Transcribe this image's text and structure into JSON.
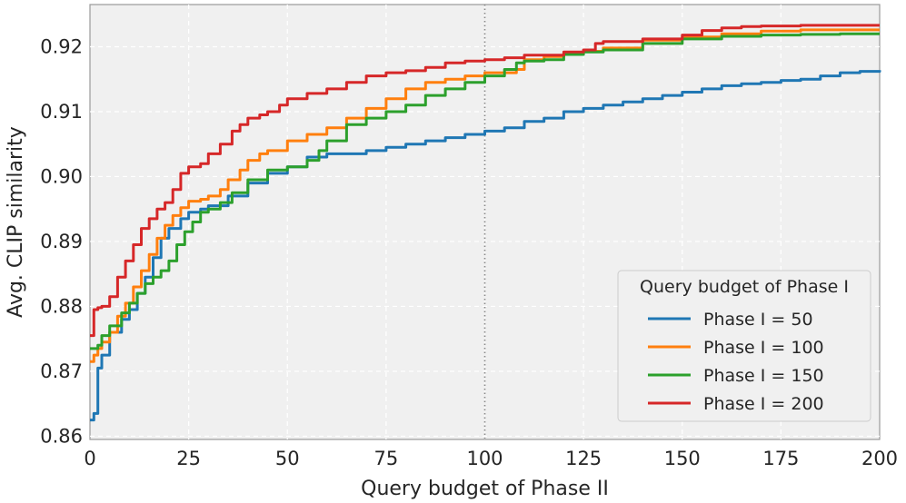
{
  "chart_data": {
    "type": "line",
    "title": "",
    "xlabel": "Query budget of Phase II",
    "ylabel": "Avg. CLIP similarity",
    "xlim": [
      0,
      200
    ],
    "ylim": [
      0.8595,
      0.9265
    ],
    "xticks": [
      0,
      25,
      50,
      75,
      100,
      125,
      150,
      175,
      200
    ],
    "xtick_labels": [
      "0",
      "25",
      "50",
      "75",
      "100",
      "125",
      "150",
      "175",
      "200"
    ],
    "yticks": [
      0.86,
      0.87,
      0.88,
      0.89,
      0.9,
      0.91,
      0.92
    ],
    "ytick_labels": [
      "0.86",
      "0.87",
      "0.88",
      "0.89",
      "0.90",
      "0.91",
      "0.92"
    ],
    "grid": true,
    "vline": {
      "x": 100,
      "style": "dotted"
    },
    "legend": {
      "title": "Query budget of Phase I",
      "position": "lower-right"
    },
    "series": [
      {
        "name": "Phase I = 50",
        "color": "#1f77b4",
        "x": [
          0,
          1,
          2,
          3,
          5,
          8,
          10,
          12,
          14,
          16,
          18,
          20,
          23,
          25,
          28,
          30,
          35,
          40,
          45,
          50,
          55,
          60,
          65,
          70,
          75,
          80,
          85,
          90,
          95,
          100,
          105,
          110,
          115,
          120,
          125,
          130,
          135,
          140,
          145,
          150,
          155,
          160,
          165,
          170,
          175,
          180,
          185,
          190,
          195,
          200
        ],
        "y": [
          0.8625,
          0.8635,
          0.8705,
          0.8725,
          0.876,
          0.878,
          0.8795,
          0.882,
          0.8845,
          0.8875,
          0.8905,
          0.892,
          0.8935,
          0.8945,
          0.895,
          0.8955,
          0.897,
          0.899,
          0.9005,
          0.9015,
          0.903,
          0.9035,
          0.9035,
          0.904,
          0.9045,
          0.905,
          0.9055,
          0.906,
          0.9065,
          0.907,
          0.9075,
          0.9085,
          0.909,
          0.91,
          0.9105,
          0.911,
          0.9115,
          0.912,
          0.9125,
          0.913,
          0.9135,
          0.914,
          0.9143,
          0.9145,
          0.9148,
          0.915,
          0.9155,
          0.916,
          0.9162,
          0.9164
        ]
      },
      {
        "name": "Phase I = 100",
        "color": "#ff7f0e",
        "x": [
          0,
          1,
          2,
          3,
          5,
          7,
          9,
          11,
          13,
          15,
          17,
          19,
          21,
          23,
          25,
          28,
          30,
          33,
          35,
          38,
          40,
          43,
          45,
          50,
          55,
          60,
          65,
          70,
          75,
          80,
          85,
          90,
          95,
          100,
          105,
          108,
          110,
          115,
          120,
          125,
          130,
          140,
          150,
          160,
          170,
          180,
          190,
          200
        ],
        "y": [
          0.8715,
          0.8725,
          0.8735,
          0.8745,
          0.876,
          0.8785,
          0.8805,
          0.883,
          0.8855,
          0.888,
          0.8905,
          0.8925,
          0.894,
          0.8952,
          0.8962,
          0.8965,
          0.897,
          0.898,
          0.8995,
          0.901,
          0.9025,
          0.9035,
          0.904,
          0.9055,
          0.9065,
          0.9075,
          0.909,
          0.9105,
          0.912,
          0.9135,
          0.9145,
          0.915,
          0.9155,
          0.916,
          0.916,
          0.9165,
          0.918,
          0.9185,
          0.919,
          0.9193,
          0.9198,
          0.921,
          0.9215,
          0.922,
          0.9224,
          0.9226,
          0.9226,
          0.9226
        ]
      },
      {
        "name": "Phase I = 150",
        "color": "#2ca02c",
        "x": [
          0,
          1,
          2,
          3,
          5,
          8,
          10,
          12,
          14,
          16,
          18,
          20,
          22,
          24,
          26,
          28,
          30,
          33,
          36,
          40,
          45,
          50,
          55,
          58,
          60,
          65,
          70,
          75,
          80,
          85,
          90,
          95,
          100,
          105,
          108,
          110,
          115,
          120,
          125,
          130,
          140,
          150,
          160,
          170,
          180,
          190,
          200
        ],
        "y": [
          0.8735,
          0.8735,
          0.874,
          0.8755,
          0.877,
          0.879,
          0.8805,
          0.882,
          0.8835,
          0.8845,
          0.8855,
          0.887,
          0.8895,
          0.8915,
          0.893,
          0.8945,
          0.895,
          0.896,
          0.8975,
          0.8995,
          0.901,
          0.9015,
          0.9025,
          0.904,
          0.9055,
          0.908,
          0.909,
          0.91,
          0.911,
          0.9125,
          0.9135,
          0.9145,
          0.9155,
          0.9165,
          0.9175,
          0.9178,
          0.918,
          0.9188,
          0.9192,
          0.9195,
          0.9205,
          0.9212,
          0.9216,
          0.9218,
          0.9219,
          0.922,
          0.922
        ]
      },
      {
        "name": "Phase I = 200",
        "color": "#d62728",
        "x": [
          0,
          1,
          2,
          3,
          5,
          7,
          9,
          11,
          13,
          15,
          17,
          19,
          21,
          23,
          25,
          28,
          30,
          33,
          36,
          38,
          40,
          43,
          45,
          48,
          50,
          55,
          60,
          65,
          70,
          75,
          80,
          85,
          90,
          95,
          100,
          105,
          110,
          120,
          125,
          128,
          130,
          140,
          150,
          155,
          160,
          165,
          170,
          180,
          190,
          200
        ],
        "y": [
          0.8755,
          0.8795,
          0.8798,
          0.88,
          0.8815,
          0.8845,
          0.887,
          0.8895,
          0.892,
          0.8935,
          0.895,
          0.896,
          0.898,
          0.9005,
          0.9015,
          0.902,
          0.9035,
          0.905,
          0.907,
          0.908,
          0.909,
          0.9095,
          0.91,
          0.911,
          0.912,
          0.9128,
          0.9135,
          0.9145,
          0.9155,
          0.916,
          0.9163,
          0.9168,
          0.9175,
          0.9178,
          0.918,
          0.9183,
          0.9187,
          0.9192,
          0.9195,
          0.9205,
          0.9208,
          0.9212,
          0.9218,
          0.9225,
          0.9229,
          0.9231,
          0.9232,
          0.9233,
          0.9233,
          0.9233
        ]
      }
    ]
  }
}
